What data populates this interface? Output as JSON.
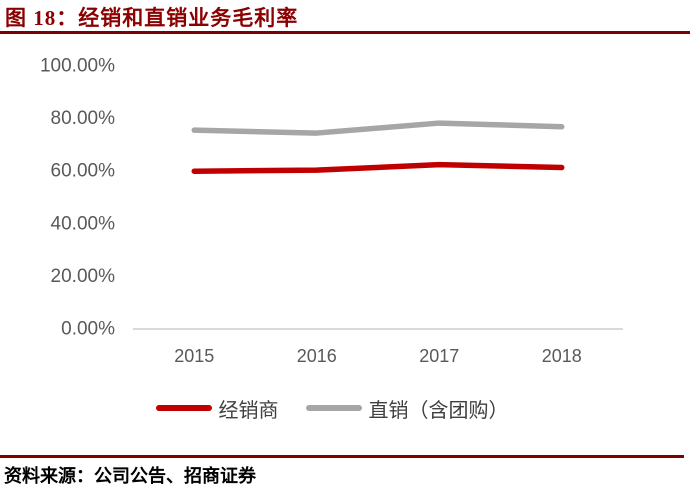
{
  "title": "图 18：经销和直销业务毛利率",
  "chart_data": {
    "type": "line",
    "title": "图 18：经销和直销业务毛利率",
    "categories": [
      "2015",
      "2016",
      "2017",
      "2018"
    ],
    "series": [
      {
        "name": "经销商",
        "color": "#C00000",
        "values": [
          60.0,
          60.4,
          62.5,
          61.4
        ]
      },
      {
        "name": "直销（含团购）",
        "color": "#A6A6A6",
        "values": [
          75.6,
          74.5,
          78.3,
          76.9
        ]
      }
    ],
    "xlabel": "",
    "ylabel": "",
    "ylim": [
      0,
      100
    ],
    "yticks": [
      "0.00%",
      "20.00%",
      "40.00%",
      "60.00%",
      "80.00%",
      "100.00%"
    ],
    "grid": false,
    "legend_position": "bottom",
    "axis_color": "#D9D9D9",
    "tick_label_color": "#595959"
  },
  "footer": {
    "source": "资料来源：公司公告、招商证券"
  },
  "colors": {
    "title": "#8B0000",
    "rule": "#7F0000",
    "series_red": "#C00000",
    "series_gray": "#A6A6A6"
  }
}
